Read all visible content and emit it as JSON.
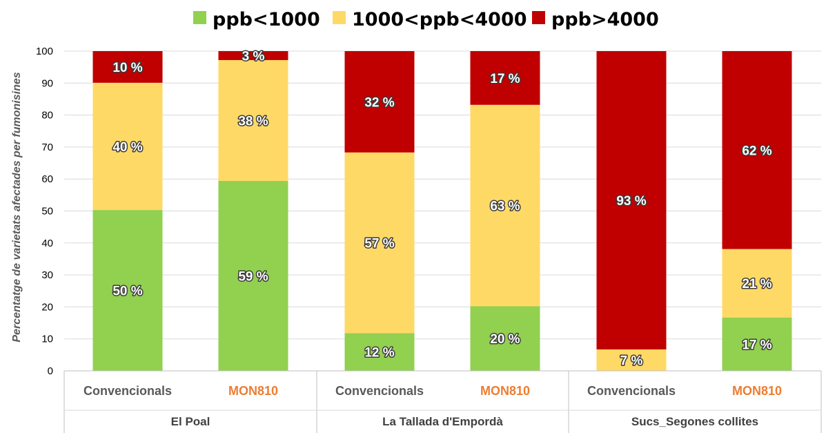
{
  "chart_data": {
    "type": "bar",
    "stacked": true,
    "ylabel": "Percentatge de varietats afectades per fumonisines",
    "ylim": [
      0,
      100
    ],
    "yticks": [
      0,
      10,
      20,
      30,
      40,
      50,
      60,
      70,
      80,
      90,
      100
    ],
    "grid": "horizontal",
    "legend_position": "top",
    "groups": [
      {
        "label": "El Poal",
        "categories": [
          "Convencionals",
          "MON810"
        ]
      },
      {
        "label": "La Tallada d'Empordà",
        "categories": [
          "Convencionals",
          "MON810"
        ]
      },
      {
        "label": "Sucs_Segones collites",
        "categories": [
          "Convencionals",
          "MON810"
        ]
      }
    ],
    "category_label_colors": {
      "Convencionals": "#595959",
      "MON810": "#ed7d31"
    },
    "series": [
      {
        "name": "ppb<1000",
        "color": "#92d050",
        "values": [
          50.3,
          59.4,
          11.8,
          20.2,
          0,
          16.7
        ],
        "labels": [
          "50 %",
          "59 %",
          "12 %",
          "20 %",
          "",
          "17 %"
        ]
      },
      {
        "name": "1000<ppb<4000",
        "color": "#ffd966",
        "values": [
          39.8,
          37.8,
          56.5,
          63.0,
          6.7,
          21.4
        ],
        "labels": [
          "40 %",
          "38 %",
          "57 %",
          "63 %",
          "7 %",
          "21 %"
        ]
      },
      {
        "name": "ppb>4000",
        "color": "#c00000",
        "values": [
          9.9,
          2.8,
          31.7,
          16.8,
          93.3,
          61.9
        ],
        "labels": [
          "10 %",
          "3 %",
          "32 %",
          "17 %",
          "93 %",
          "62 %"
        ]
      }
    ]
  }
}
